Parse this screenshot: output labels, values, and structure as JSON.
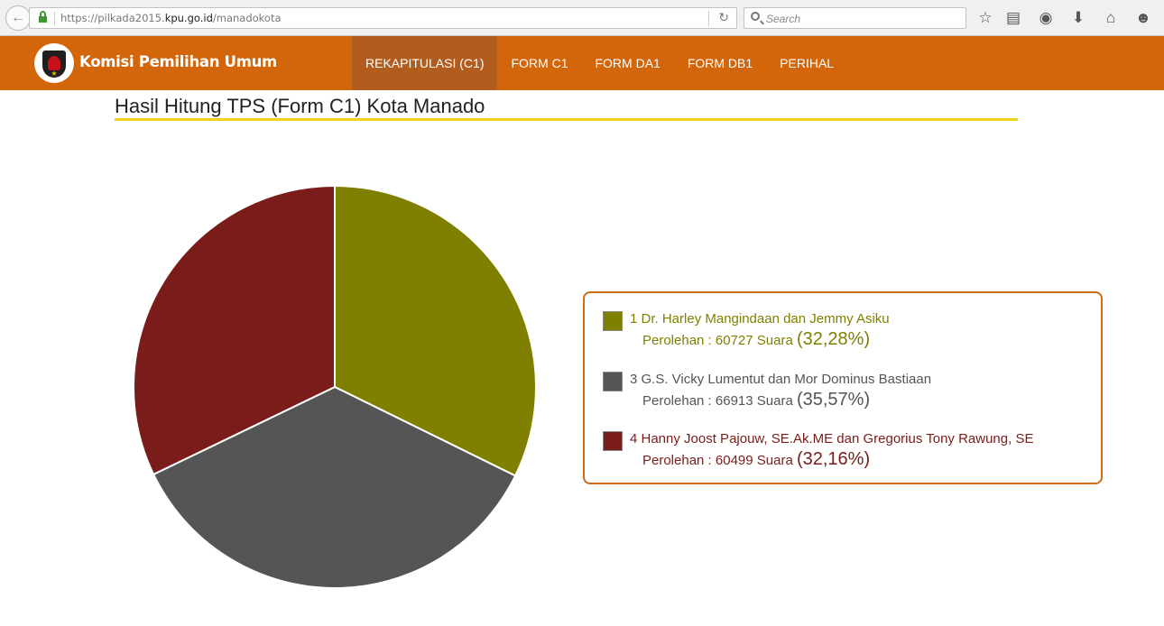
{
  "browser": {
    "url_prefix": "https://pilkada2015.",
    "url_domain": "kpu.go.id",
    "url_path": "/manadokota",
    "search_placeholder": "Search"
  },
  "site": {
    "logo_text": "Komisi Pemilihan Umum",
    "nav": [
      {
        "label": "REKAPITULASI (C1)",
        "active": true
      },
      {
        "label": "FORM C1",
        "active": false
      },
      {
        "label": "FORM DA1",
        "active": false
      },
      {
        "label": "FORM DB1",
        "active": false
      },
      {
        "label": "PERIHAL",
        "active": false
      }
    ]
  },
  "page": {
    "title": "Hasil Hitung TPS (Form C1) Kota Manado"
  },
  "chart_data": {
    "type": "pie",
    "categories": [
      "Dr. Harley Mangindaan dan Jemmy Asiku",
      "G.S. Vicky Lumentut dan Mor Dominus Bastiaan",
      "Hanny Joost Pajouw, SE.Ak.ME dan Gregorius Tony Rawung, SE"
    ],
    "values": [
      60727,
      66913,
      60499
    ],
    "colors": [
      "#808000",
      "#555555",
      "#7a1c19"
    ]
  },
  "legend": [
    {
      "number": "1",
      "name": "Dr. Harley Mangindaan dan Jemmy Asiku",
      "votes_text": "Perolehan : 60727 Suara",
      "percent": "(32,28%)",
      "color": "#808000",
      "text_color": "#808000"
    },
    {
      "number": "3",
      "name": "G.S. Vicky Lumentut dan Mor Dominus Bastiaan",
      "votes_text": "Perolehan : 66913 Suara",
      "percent": "(35,57%)",
      "color": "#555555",
      "text_color": "#555555"
    },
    {
      "number": "4",
      "name": "Hanny Joost Pajouw, SE.Ak.ME dan Gregorius Tony Rawung, SE",
      "votes_text": "Perolehan : 60499 Suara",
      "percent": "(32,16%)",
      "color": "#7a1c19",
      "text_color": "#7a1c19"
    }
  ]
}
